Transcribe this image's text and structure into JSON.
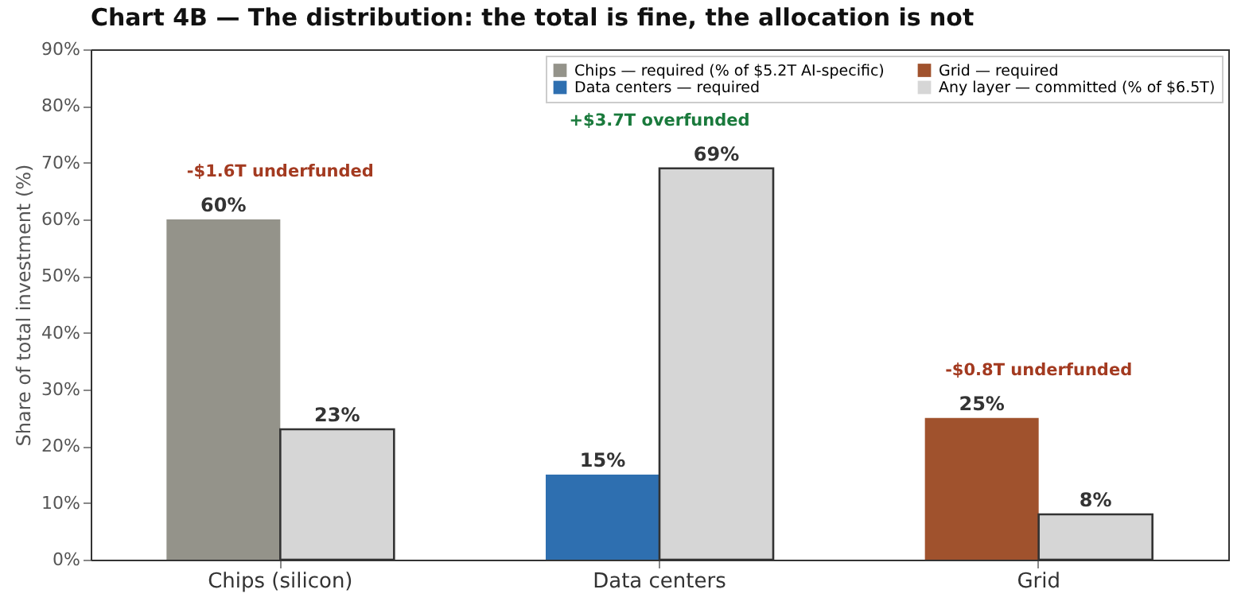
{
  "chart_data": {
    "type": "bar",
    "title": "Chart 4B — The distribution: the total is fine, the allocation is not",
    "ylabel": "Share of total investment (%)",
    "categories": [
      "Chips (silicon)",
      "Data centers",
      "Grid"
    ],
    "series": [
      {
        "name": "Chips — required (% of $5.2T AI-specific)",
        "color": "#94938a",
        "values": [
          60,
          null,
          null
        ],
        "value_labels": [
          "60%",
          null,
          null
        ]
      },
      {
        "name": "Data centers — required",
        "color": "#2e6fb0",
        "values": [
          null,
          15,
          null
        ],
        "value_labels": [
          null,
          "15%",
          null
        ]
      },
      {
        "name": "Grid — required",
        "color": "#a0522d",
        "values": [
          null,
          null,
          25
        ],
        "value_labels": [
          null,
          null,
          "25%"
        ]
      },
      {
        "name": "Any layer — committed (% of $6.5T)",
        "color": "#d6d6d6",
        "values": [
          23,
          69,
          8
        ],
        "value_labels": [
          "23%",
          "69%",
          "8%"
        ]
      }
    ],
    "ylim": [
      0,
      90
    ],
    "yticks": [
      {
        "value": 0,
        "label": "0%"
      },
      {
        "value": 10,
        "label": "10%"
      },
      {
        "value": 20,
        "label": "20%"
      },
      {
        "value": 30,
        "label": "30%"
      },
      {
        "value": 40,
        "label": "40%"
      },
      {
        "value": 50,
        "label": "50%"
      },
      {
        "value": 60,
        "label": "60%"
      },
      {
        "value": 70,
        "label": "70%"
      },
      {
        "value": 80,
        "label": "80%"
      },
      {
        "value": 90,
        "label": "90%"
      }
    ],
    "annotations": [
      "-$1.6T underfunded",
      "+$3.7T overfunded",
      "-$0.8T underfunded"
    ],
    "legend": "top right",
    "grid": false
  }
}
